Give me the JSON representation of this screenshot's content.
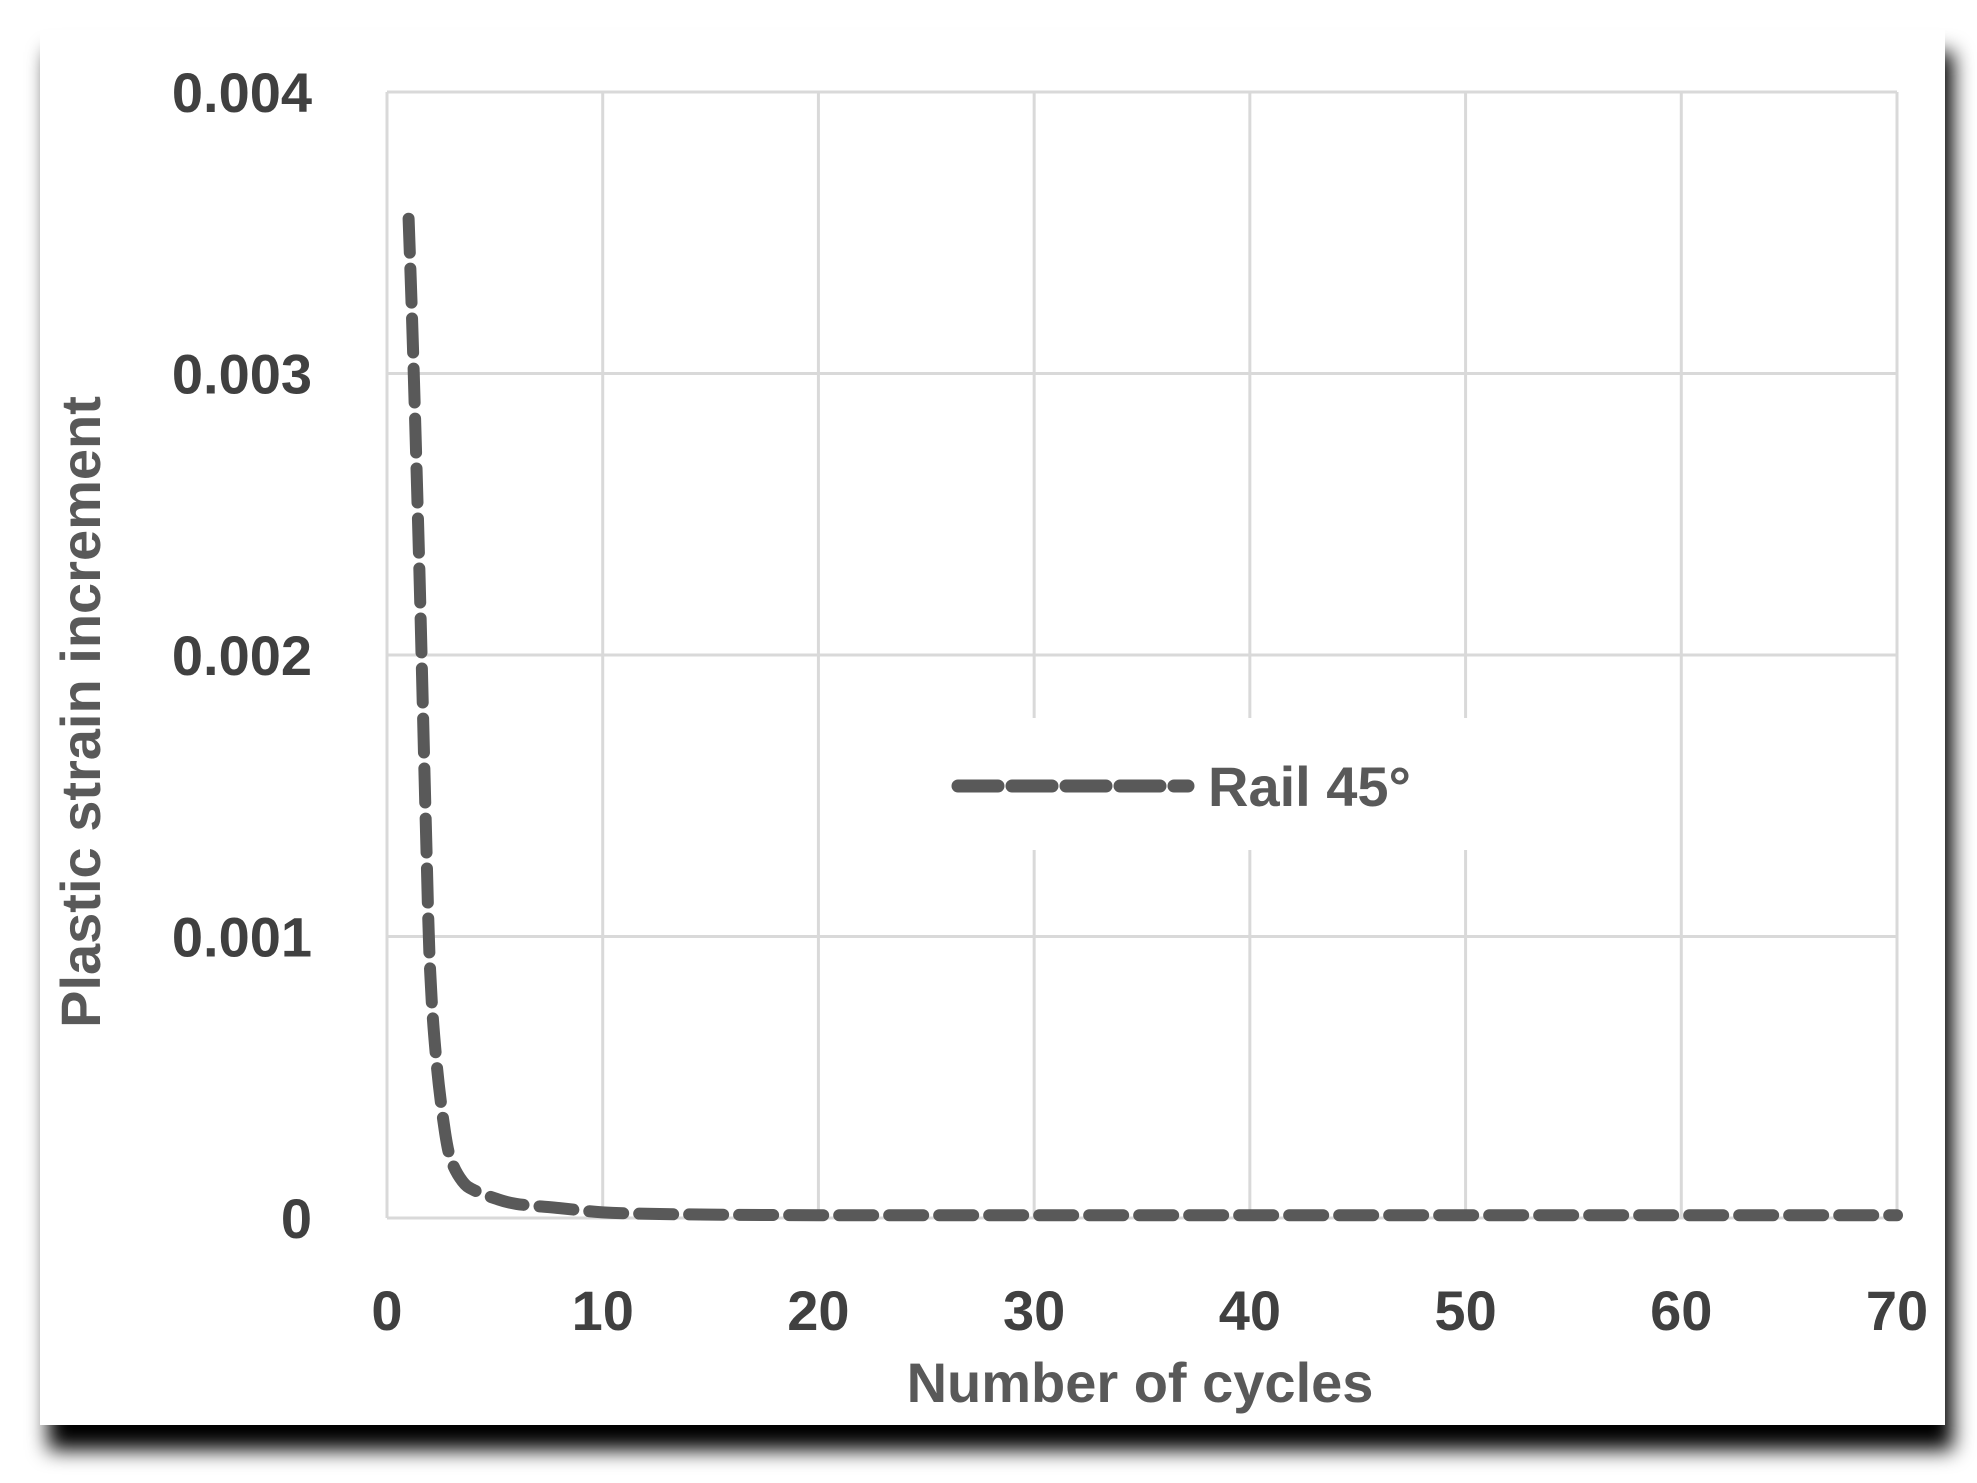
{
  "chart_data": {
    "type": "line",
    "title": "",
    "xlabel": "Number of cycles",
    "ylabel": "Plastic strain increment",
    "xlim": [
      0,
      70
    ],
    "ylim": [
      0,
      0.004
    ],
    "x_ticks": [
      0,
      10,
      20,
      30,
      40,
      50,
      60,
      70
    ],
    "x_tick_labels": [
      "0",
      "10",
      "20",
      "30",
      "40",
      "50",
      "60",
      "70"
    ],
    "y_ticks": [
      0,
      0.001,
      0.002,
      0.003,
      0.004
    ],
    "y_tick_labels": [
      "0",
      "0.001",
      "0.002",
      "0.003",
      "0.004"
    ],
    "grid": true,
    "legend": {
      "placement": "center",
      "entries": [
        "Rail 45°"
      ]
    },
    "series": [
      {
        "name": "Rail 45°",
        "color": "#595959",
        "line_style": "dashed",
        "x": [
          1,
          1.2,
          1.5,
          1.8,
          2,
          2.3,
          2.7,
          3,
          3.5,
          4,
          5,
          6,
          8,
          10,
          12,
          15,
          20,
          25,
          30,
          35,
          40,
          45,
          50,
          55,
          60,
          65,
          70
        ],
        "y": [
          0.00355,
          0.0031,
          0.0023,
          0.0014,
          0.00088,
          0.00055,
          0.0003,
          0.0002,
          0.00013,
          0.0001,
          7e-05,
          5e-05,
          3.5e-05,
          2e-05,
          1.5e-05,
          1.2e-05,
          1e-05,
          1e-05,
          1e-05,
          1e-05,
          1e-05,
          1e-05,
          1e-05,
          1e-05,
          1e-05,
          1e-05,
          1e-05
        ]
      }
    ]
  },
  "colors": {
    "axis_text": "#404040",
    "title_text": "#595959",
    "gridline": "#d9d9d9",
    "series": "#595959",
    "shadow": "#000000"
  }
}
